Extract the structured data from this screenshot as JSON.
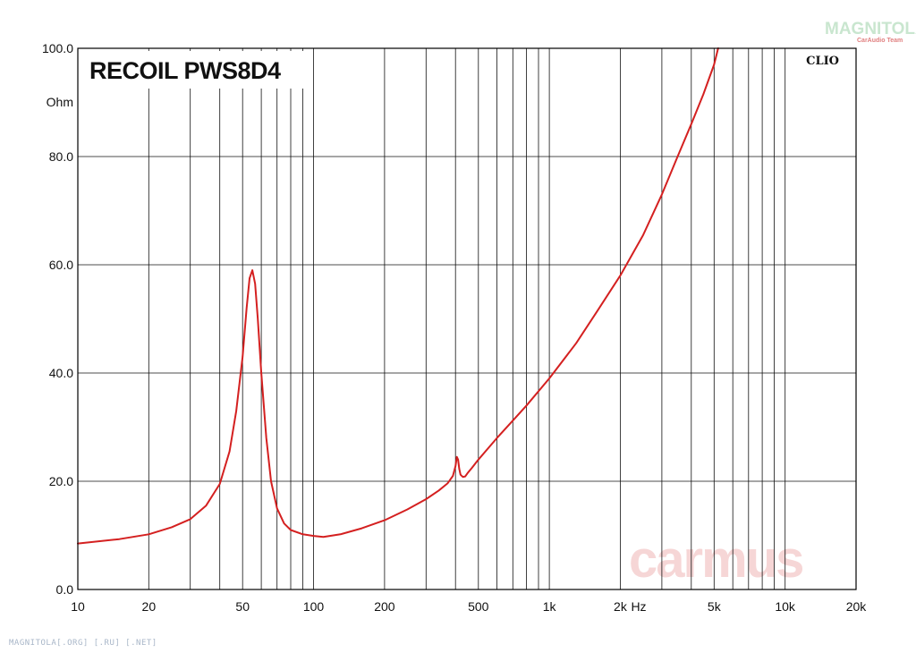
{
  "chart_data": {
    "type": "line",
    "title": "RECOIL PWS8D4",
    "brand_tag": "CLIO",
    "y_unit": "Ohm",
    "x_unit": "Hz",
    "x_scale": "log",
    "xlim": [
      10,
      20000
    ],
    "ylim": [
      0,
      100
    ],
    "grid": true,
    "line_color": "#d42020",
    "x_ticks": [
      {
        "value": 10,
        "label": "10"
      },
      {
        "value": 20,
        "label": "20"
      },
      {
        "value": 50,
        "label": "50"
      },
      {
        "value": 100,
        "label": "100"
      },
      {
        "value": 200,
        "label": "200"
      },
      {
        "value": 500,
        "label": "500"
      },
      {
        "value": 1000,
        "label": "1k"
      },
      {
        "value": 2000,
        "label": "2k"
      },
      {
        "value": 5000,
        "label": "5k"
      },
      {
        "value": 10000,
        "label": "10k"
      },
      {
        "value": 20000,
        "label": "20k"
      }
    ],
    "y_ticks": [
      {
        "value": 0,
        "label": "0.0"
      },
      {
        "value": 20,
        "label": "20.0"
      },
      {
        "value": 40,
        "label": "40.0"
      },
      {
        "value": 60,
        "label": "60.0"
      },
      {
        "value": 80,
        "label": "80.0"
      },
      {
        "value": 100,
        "label": "100.0"
      }
    ],
    "series": [
      {
        "x": [
          10,
          15,
          20,
          25,
          30,
          35,
          40,
          44,
          47,
          50,
          52,
          53.5,
          55,
          56.5,
          58,
          60,
          63,
          66,
          70,
          75,
          80,
          90,
          100,
          110,
          130,
          160,
          200,
          250,
          300,
          340,
          370,
          390,
          400,
          405,
          410,
          415,
          420,
          430,
          440,
          450,
          470,
          500,
          600,
          700,
          800,
          1000,
          1300,
          1600,
          2000,
          2500,
          3000,
          3500,
          4000,
          4500,
          5000,
          5200
        ],
        "y": [
          8.5,
          9.3,
          10.2,
          11.5,
          13.0,
          15.5,
          19.5,
          25.5,
          33.0,
          43.0,
          52.0,
          57.5,
          59.0,
          56.5,
          50.0,
          40.0,
          28.0,
          20.0,
          15.0,
          12.2,
          11.0,
          10.2,
          9.9,
          9.7,
          10.2,
          11.3,
          12.8,
          14.8,
          16.7,
          18.3,
          19.6,
          21.0,
          22.8,
          24.5,
          24.0,
          22.3,
          21.2,
          20.8,
          20.9,
          21.5,
          22.5,
          24.0,
          28.0,
          31.2,
          34.0,
          39.0,
          45.5,
          51.5,
          58.0,
          65.5,
          73.0,
          80.0,
          86.0,
          91.5,
          97.0,
          100.0
        ]
      }
    ]
  },
  "watermark": {
    "carmus": "carmus",
    "logo_main": "MAGNITOLA",
    "logo_sub": "CarAudio Team"
  },
  "footer": "MAGNITOLA[.ORG] [.RU] [.NET]"
}
